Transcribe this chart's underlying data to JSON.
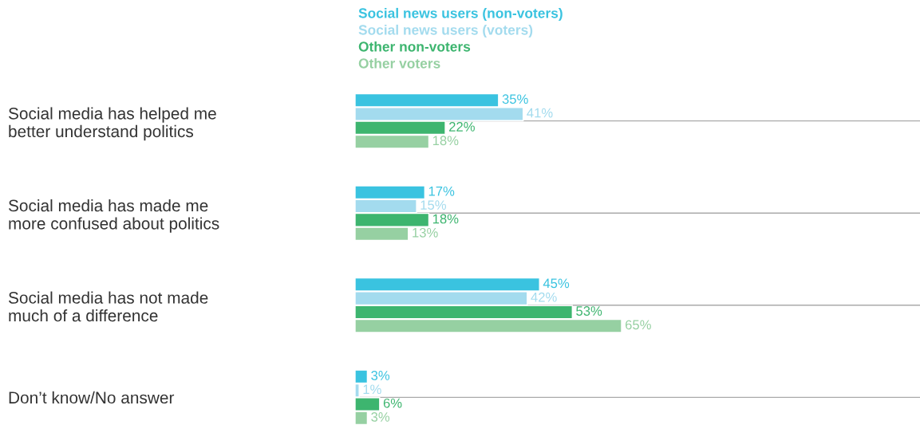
{
  "chart_data": {
    "type": "bar",
    "orientation": "horizontal",
    "categories": [
      "Social media has helped me\nbetter understand politics",
      "Social media has made me\nmore confused about politics",
      "Social media has not made\nmuch of a difference",
      "Don’t know/No answer"
    ],
    "series": [
      {
        "name": "Social news users (non-voters)",
        "color": "#3ac3e0",
        "values": [
          35,
          17,
          45,
          3
        ],
        "value_labels": [
          "35%",
          "17%",
          "45%",
          "3%"
        ]
      },
      {
        "name": "Social news users (voters)",
        "color": "#a3dbee",
        "values": [
          41,
          15,
          42,
          1
        ],
        "value_labels": [
          "41%",
          "15%",
          "42%",
          "1%"
        ]
      },
      {
        "name": "Other non-voters",
        "color": "#3db56f",
        "values": [
          22,
          18,
          53,
          6
        ],
        "value_labels": [
          "22%",
          "18%",
          "53%",
          "6%"
        ]
      },
      {
        "name": "Other voters",
        "color": "#96d0a2",
        "values": [
          18,
          13,
          65,
          3
        ],
        "value_labels": [
          "18%",
          "13%",
          "65%",
          "3%"
        ]
      }
    ],
    "grid": "y",
    "legend": "top"
  }
}
